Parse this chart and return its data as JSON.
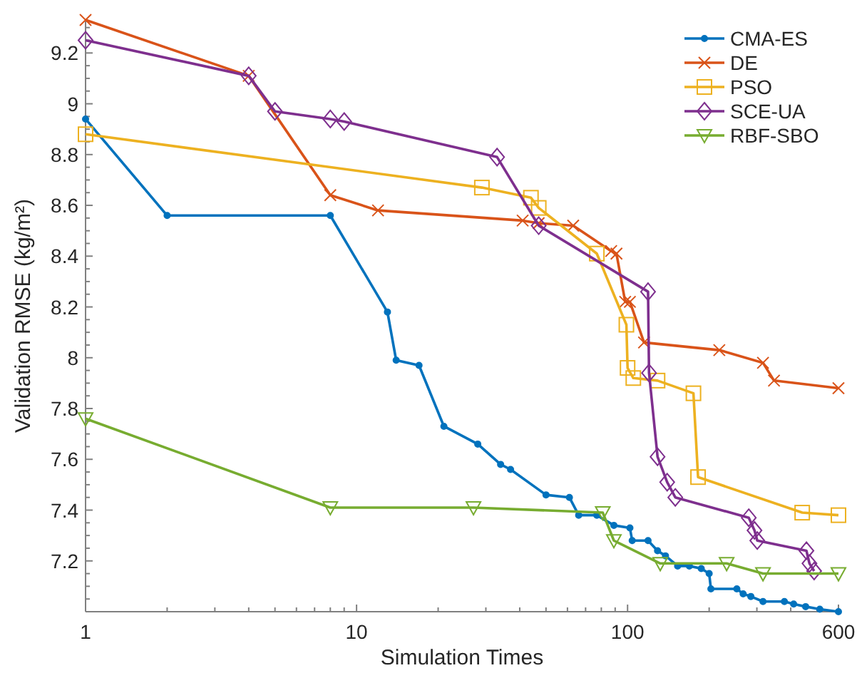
{
  "chart_data": {
    "type": "line",
    "xlabel": "Simulation Times",
    "ylabel": "Validation RMSE (kg/m²)",
    "log": "x",
    "xlim": [
      1,
      600
    ],
    "ylim": [
      7.0,
      9.33
    ],
    "xticks": [
      1,
      {
        "value": 2,
        "label": null
      },
      {
        "value": 3,
        "label": null
      },
      {
        "value": 4,
        "label": null
      },
      {
        "value": 5,
        "label": null
      },
      {
        "value": 6,
        "label": null
      },
      {
        "value": 7,
        "label": null
      },
      {
        "value": 8,
        "label": null
      },
      {
        "value": 9,
        "label": null
      },
      10,
      {
        "value": 20,
        "label": null
      },
      {
        "value": 30,
        "label": null
      },
      {
        "value": 40,
        "label": null
      },
      {
        "value": 50,
        "label": null
      },
      {
        "value": 60,
        "label": null
      },
      {
        "value": 70,
        "label": null
      },
      {
        "value": 80,
        "label": null
      },
      {
        "value": 90,
        "label": null
      },
      100,
      {
        "value": 200,
        "label": null
      },
      {
        "value": 300,
        "label": null
      },
      {
        "value": 400,
        "label": null
      },
      {
        "value": 500,
        "label": null
      },
      600
    ],
    "yticks": [
      {
        "value": 7.05,
        "label": null
      },
      {
        "value": 7.1,
        "label": null
      },
      {
        "value": 7.15,
        "label": null
      },
      {
        "value": 7.2,
        "label": "7.2"
      },
      {
        "value": 7.25,
        "label": null
      },
      {
        "value": 7.3,
        "label": null
      },
      {
        "value": 7.35,
        "label": null
      },
      {
        "value": 7.4,
        "label": "7.4"
      },
      {
        "value": 7.45,
        "label": null
      },
      {
        "value": 7.5,
        "label": null
      },
      {
        "value": 7.55,
        "label": null
      },
      {
        "value": 7.6,
        "label": "7.6"
      },
      {
        "value": 7.65,
        "label": null
      },
      {
        "value": 7.7,
        "label": null
      },
      {
        "value": 7.75,
        "label": null
      },
      {
        "value": 7.8,
        "label": "7.8"
      },
      {
        "value": 7.85,
        "label": null
      },
      {
        "value": 7.9,
        "label": null
      },
      {
        "value": 7.95,
        "label": null
      },
      {
        "value": 8,
        "label": "8"
      },
      {
        "value": 8.05,
        "label": null
      },
      {
        "value": 8.1,
        "label": null
      },
      {
        "value": 8.15,
        "label": null
      },
      {
        "value": 8.2,
        "label": "8.2"
      },
      {
        "value": 8.25,
        "label": null
      },
      {
        "value": 8.3,
        "label": null
      },
      {
        "value": 8.35,
        "label": null
      },
      {
        "value": 8.4,
        "label": "8.4"
      },
      {
        "value": 8.45,
        "label": null
      },
      {
        "value": 8.5,
        "label": null
      },
      {
        "value": 8.55,
        "label": null
      },
      {
        "value": 8.6,
        "label": "8.6"
      },
      {
        "value": 8.65,
        "label": null
      },
      {
        "value": 8.7,
        "label": null
      },
      {
        "value": 8.75,
        "label": null
      },
      {
        "value": 8.8,
        "label": "8.8"
      },
      {
        "value": 8.85,
        "label": null
      },
      {
        "value": 8.9,
        "label": null
      },
      {
        "value": 8.95,
        "label": null
      },
      {
        "value": 9,
        "label": "9"
      },
      {
        "value": 9.05,
        "label": null
      },
      {
        "value": 9.1,
        "label": null
      },
      {
        "value": 9.15,
        "label": null
      },
      {
        "value": 9.2,
        "label": "9.2"
      },
      {
        "value": 9.25,
        "label": null
      },
      {
        "value": 9.3,
        "label": null
      }
    ],
    "grid": false,
    "legend": "top right",
    "line_style": "solid",
    "series": [
      {
        "name": "CMA-ES",
        "color": "#0072bd",
        "marker": "circle",
        "x": [
          1,
          2,
          8,
          13,
          14,
          17,
          21,
          28,
          34,
          37,
          50,
          61,
          66,
          77,
          89,
          102,
          104,
          119,
          129,
          138,
          153,
          169,
          187,
          200,
          203,
          253,
          267,
          285,
          316,
          379,
          410,
          454,
          512,
          600
        ],
        "values": [
          8.94,
          8.56,
          8.56,
          8.18,
          7.99,
          7.97,
          7.73,
          7.66,
          7.58,
          7.56,
          7.46,
          7.45,
          7.38,
          7.38,
          7.34,
          7.33,
          7.28,
          7.28,
          7.24,
          7.22,
          7.18,
          7.18,
          7.17,
          7.15,
          7.09,
          7.09,
          7.07,
          7.06,
          7.04,
          7.04,
          7.03,
          7.02,
          7.01,
          7.0
        ]
      },
      {
        "name": "DE",
        "color": "#d95319",
        "marker": "cross",
        "x": [
          1,
          4,
          8,
          12,
          41,
          47,
          63,
          87,
          91,
          98,
          102,
          115,
          218,
          316,
          347,
          600
        ],
        "values": [
          9.33,
          9.11,
          8.64,
          8.58,
          8.54,
          8.53,
          8.52,
          8.42,
          8.41,
          8.22,
          8.22,
          8.06,
          8.03,
          7.98,
          7.91,
          7.88
        ]
      },
      {
        "name": "PSO",
        "color": "#edb120",
        "marker": "square",
        "x": [
          1,
          29,
          44,
          47,
          77,
          99,
          100,
          105,
          129,
          175,
          182,
          441,
          600
        ],
        "values": [
          8.88,
          8.67,
          8.63,
          8.59,
          8.41,
          8.13,
          7.96,
          7.92,
          7.91,
          7.86,
          7.53,
          7.39,
          7.38
        ]
      },
      {
        "name": "SCE-UA",
        "color": "#7e2f8e",
        "marker": "diamond",
        "x": [
          1,
          4,
          5,
          8,
          9,
          33,
          47,
          119,
          120,
          129,
          140,
          150,
          280,
          294,
          301,
          457,
          469,
          488
        ],
        "values": [
          9.25,
          9.11,
          8.97,
          8.94,
          8.93,
          8.79,
          8.52,
          8.26,
          7.94,
          7.61,
          7.51,
          7.45,
          7.37,
          7.32,
          7.28,
          7.24,
          7.19,
          7.16
        ]
      },
      {
        "name": "RBF-SBO",
        "color": "#77ac30",
        "marker": "triangle",
        "x": [
          1,
          8,
          27,
          81,
          89,
          132,
          232,
          316,
          600
        ],
        "values": [
          7.76,
          7.41,
          7.41,
          7.39,
          7.28,
          7.19,
          7.19,
          7.15,
          7.15
        ]
      }
    ]
  }
}
